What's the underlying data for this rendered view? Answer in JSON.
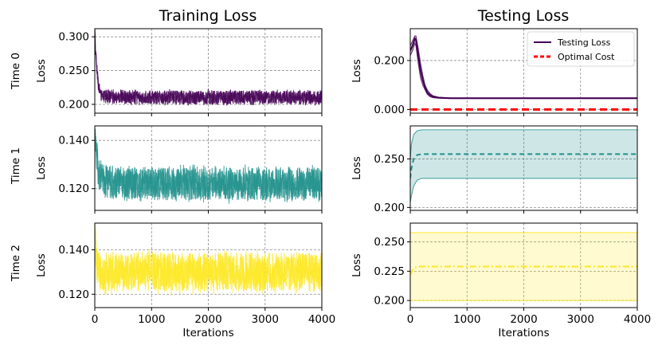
{
  "figure": {
    "column_titles": [
      "Training Loss",
      "Testing Loss"
    ],
    "row_labels": [
      "Time 0",
      "Time 1",
      "Time 2"
    ],
    "xlabel": "Iterations",
    "x_ticks": [
      "0",
      "1000",
      "2000",
      "3000",
      "4000"
    ],
    "colors": {
      "time0": "#440154",
      "time1": "#21918c",
      "time2": "#fde725",
      "optimal": "#ff0000"
    }
  },
  "chart_data": [
    {
      "type": "line",
      "panel": "training-time-0",
      "title": "Training Loss",
      "ylabel": "Loss",
      "xlabel": "",
      "xlim": [
        0,
        4000
      ],
      "ylim": [
        0.187,
        0.312
      ],
      "y_ticks": [
        "0.200",
        "0.250",
        "0.300"
      ],
      "y_tick_values": [
        0.2,
        0.25,
        0.3
      ],
      "series": [
        {
          "name": "",
          "x": [
            0,
            20,
            60,
            100,
            200,
            500,
            1000,
            2000,
            3000,
            4000
          ],
          "y": [
            0.305,
            0.27,
            0.228,
            0.215,
            0.212,
            0.211,
            0.21,
            0.21,
            0.21,
            0.21
          ],
          "noise_band": [
            0.198,
            0.224
          ]
        }
      ]
    },
    {
      "type": "line",
      "panel": "training-time-1",
      "title": "",
      "ylabel": "Loss",
      "xlabel": "",
      "xlim": [
        0,
        4000
      ],
      "ylim": [
        0.111,
        0.146
      ],
      "y_ticks": [
        "0.120",
        "0.140"
      ],
      "y_tick_values": [
        0.12,
        0.14
      ],
      "series": [
        {
          "name": "",
          "x": [
            0,
            20,
            60,
            100,
            200,
            500,
            1000,
            2000,
            3000,
            4000
          ],
          "y": [
            0.142,
            0.136,
            0.128,
            0.124,
            0.123,
            0.1225,
            0.122,
            0.122,
            0.122,
            0.122
          ],
          "noise_band": [
            0.114,
            0.131
          ]
        }
      ]
    },
    {
      "type": "line",
      "panel": "training-time-2",
      "title": "",
      "ylabel": "Loss",
      "xlabel": "Iterations",
      "xlim": [
        0,
        4000
      ],
      "ylim": [
        0.114,
        0.152
      ],
      "y_ticks": [
        "0.120",
        "0.140"
      ],
      "y_tick_values": [
        0.12,
        0.14
      ],
      "series": [
        {
          "name": "",
          "x": [
            0,
            20,
            60,
            100,
            500,
            1000,
            2000,
            3000,
            4000
          ],
          "y": [
            0.148,
            0.138,
            0.131,
            0.13,
            0.13,
            0.13,
            0.13,
            0.13,
            0.13
          ],
          "noise_band": [
            0.119,
            0.141
          ]
        }
      ]
    },
    {
      "type": "line",
      "panel": "testing-time-0",
      "title": "Testing Loss",
      "ylabel": "Loss",
      "xlabel": "",
      "xlim": [
        0,
        4000
      ],
      "ylim": [
        -0.015,
        0.33
      ],
      "y_ticks": [
        "0.000",
        "0.200"
      ],
      "y_tick_values": [
        0.0,
        0.2
      ],
      "legend": {
        "position": "top-right",
        "entries": [
          "Testing Loss",
          "Optimal Cost"
        ]
      },
      "series": [
        {
          "name": "Testing Loss",
          "style": "solid",
          "x": [
            0,
            40,
            80,
            100,
            140,
            180,
            220,
            260,
            300,
            350,
            400,
            500,
            700,
            1000,
            2000,
            3000,
            4000
          ],
          "y": [
            0.24,
            0.26,
            0.29,
            0.285,
            0.22,
            0.16,
            0.12,
            0.09,
            0.07,
            0.058,
            0.052,
            0.048,
            0.046,
            0.046,
            0.046,
            0.046,
            0.046
          ],
          "band_upper": [
            0.26,
            0.28,
            0.3,
            0.3,
            0.25,
            0.19,
            0.14,
            0.1,
            0.08,
            0.065,
            0.056,
            0.05,
            0.047,
            0.047,
            0.047,
            0.047,
            0.047
          ],
          "band_lower": [
            0.22,
            0.24,
            0.27,
            0.26,
            0.19,
            0.13,
            0.1,
            0.08,
            0.062,
            0.052,
            0.048,
            0.046,
            0.045,
            0.045,
            0.045,
            0.045,
            0.045
          ]
        },
        {
          "name": "Optimal Cost",
          "style": "dashed",
          "x": [
            0,
            4000
          ],
          "y": [
            0.0,
            0.0
          ]
        }
      ]
    },
    {
      "type": "line",
      "panel": "testing-time-1",
      "title": "",
      "ylabel": "Loss",
      "xlabel": "",
      "xlim": [
        0,
        4000
      ],
      "ylim": [
        0.197,
        0.284
      ],
      "y_ticks": [
        "0.200",
        "0.250"
      ],
      "y_tick_values": [
        0.2,
        0.25
      ],
      "series": [
        {
          "name": "",
          "style": "dashed",
          "x": [
            0,
            20,
            60,
            120,
            200,
            300,
            4000
          ],
          "y": [
            0.23,
            0.24,
            0.25,
            0.254,
            0.255,
            0.255,
            0.255
          ],
          "band_upper": [
            0.25,
            0.265,
            0.275,
            0.279,
            0.28,
            0.28,
            0.28
          ],
          "band_lower": [
            0.205,
            0.212,
            0.222,
            0.228,
            0.23,
            0.23,
            0.23
          ]
        }
      ]
    },
    {
      "type": "line",
      "panel": "testing-time-2",
      "title": "",
      "ylabel": "Loss",
      "xlabel": "Iterations",
      "xlim": [
        0,
        4000
      ],
      "ylim": [
        0.194,
        0.266
      ],
      "y_ticks": [
        "0.200",
        "0.225",
        "0.250"
      ],
      "y_tick_values": [
        0.2,
        0.225,
        0.25
      ],
      "series": [
        {
          "name": "",
          "style": "dashdot",
          "x": [
            0,
            40,
            80,
            150,
            250,
            4000
          ],
          "y": [
            0.222,
            0.226,
            0.228,
            0.229,
            0.229,
            0.229
          ],
          "band_upper": [
            0.258,
            0.258,
            0.258,
            0.258,
            0.258,
            0.258
          ],
          "band_lower": [
            0.2,
            0.2,
            0.2,
            0.2,
            0.2,
            0.2
          ]
        }
      ]
    }
  ]
}
